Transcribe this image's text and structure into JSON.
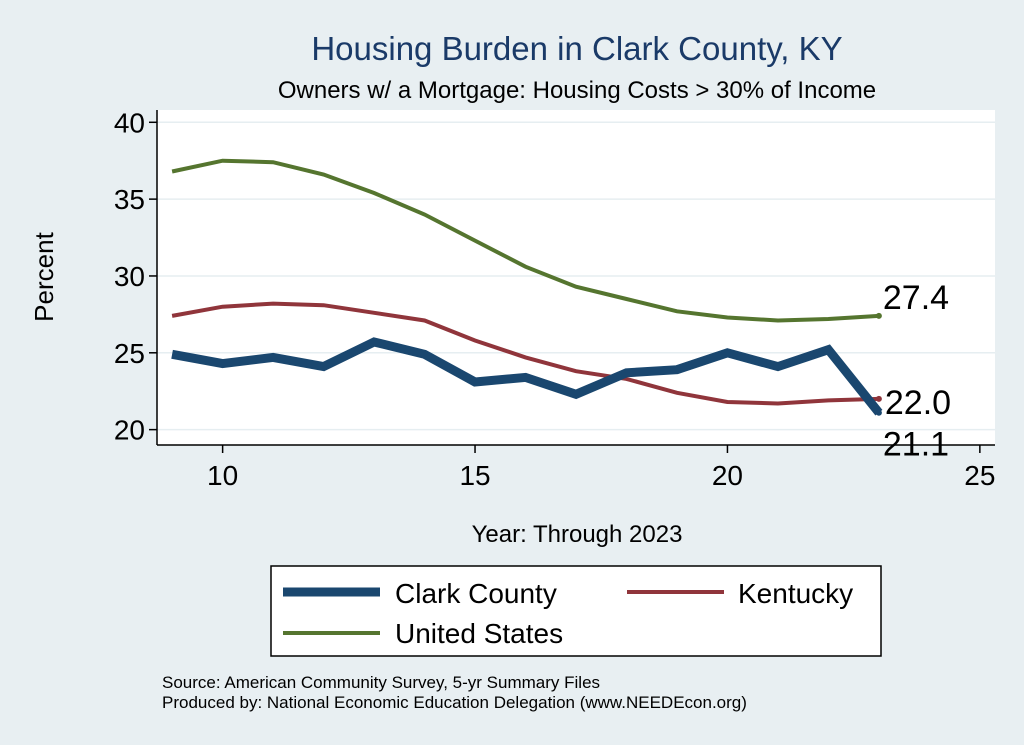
{
  "chart_data": {
    "type": "line",
    "title": "Housing Burden in Clark County, KY",
    "subtitle": "Owners w/ a Mortgage: Housing Costs > 30% of Income",
    "xlabel": "Year: Through 2023",
    "ylabel": "Percent",
    "xlim": [
      8.7,
      25.3
    ],
    "ylim": [
      19,
      40.8
    ],
    "xticks": [
      10,
      15,
      20,
      25
    ],
    "yticks": [
      20,
      25,
      30,
      35,
      40
    ],
    "grid": true,
    "x": [
      9,
      10,
      11,
      12,
      13,
      14,
      15,
      16,
      17,
      18,
      19,
      20,
      21,
      22,
      23
    ],
    "series": [
      {
        "name": "Clark County",
        "color": "#1a476f",
        "values": [
          24.9,
          24.3,
          24.7,
          24.1,
          25.7,
          24.9,
          23.1,
          23.4,
          22.3,
          23.7,
          23.9,
          25.0,
          24.1,
          25.2,
          21.1
        ],
        "end_label": "21.1"
      },
      {
        "name": "Kentucky",
        "color": "#90353b",
        "values": [
          27.4,
          28.0,
          28.2,
          28.1,
          27.6,
          27.1,
          25.8,
          24.7,
          23.8,
          23.3,
          22.4,
          21.8,
          21.7,
          21.9,
          22.0
        ],
        "end_label": "22.0"
      },
      {
        "name": "United States",
        "color": "#55752f",
        "values": [
          36.8,
          37.5,
          37.4,
          36.6,
          35.4,
          34.0,
          32.3,
          30.6,
          29.3,
          28.5,
          27.7,
          27.3,
          27.1,
          27.2,
          27.4
        ],
        "end_label": "27.4"
      }
    ],
    "legend": {
      "placement": "bottom",
      "items": [
        "Clark County",
        "Kentucky",
        "United States"
      ]
    },
    "notes": [
      "Source: American Community Survey, 5-yr Summary Files",
      "Produced by: National Economic Education Delegation (www.NEEDEcon.org)"
    ]
  }
}
